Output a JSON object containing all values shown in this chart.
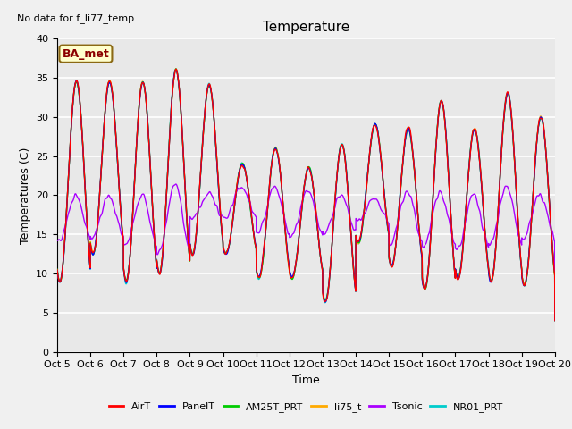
{
  "title": "Temperature",
  "xlabel": "Time",
  "ylabel": "Temperatures (C)",
  "ylim": [
    0,
    40
  ],
  "xlim": [
    0,
    15
  ],
  "annotation": "No data for f_li77_temp",
  "legend_label": "BA_met",
  "x_tick_labels": [
    "Oct 5",
    "Oct 6",
    "Oct 7",
    "Oct 8",
    "Oct 9",
    "Oct 10",
    "Oct 11",
    "Oct 12",
    "Oct 13",
    "Oct 14",
    "Oct 15",
    "Oct 16",
    "Oct 17",
    "Oct 18",
    "Oct 19",
    "Oct 20"
  ],
  "series": {
    "AirT": {
      "color": "#ff0000"
    },
    "PanelT": {
      "color": "#0000ff"
    },
    "AM25T_PRT": {
      "color": "#00cc00"
    },
    "li75_t": {
      "color": "#ffaa00"
    },
    "Tsonic": {
      "color": "#aa00ff"
    },
    "NR01_PRT": {
      "color": "#00cccc"
    }
  },
  "bg_color": "#e8e8e8",
  "grid_color": "#ffffff",
  "fig_bg": "#f0f0f0",
  "day_peaks": [
    34.5,
    34.5,
    34.5,
    36.0,
    34.0,
    24.0,
    26.0,
    23.5,
    26.5,
    29.0,
    28.5,
    32.0,
    28.5,
    33.0,
    30.0
  ],
  "day_troughs": [
    9.0,
    12.5,
    9.0,
    10.0,
    12.5,
    12.5,
    9.5,
    9.5,
    6.5,
    14.0,
    11.0,
    8.0,
    9.5,
    9.0,
    8.5
  ],
  "tsonic_peaks": [
    20.0,
    20.0,
    20.0,
    21.5,
    20.0,
    21.0,
    21.0,
    20.5,
    20.0,
    19.5,
    20.5,
    20.5,
    20.0,
    21.0,
    20.0
  ],
  "tsonic_troughs": [
    14.0,
    14.5,
    13.5,
    12.5,
    17.0,
    17.0,
    15.0,
    14.5,
    15.0,
    16.5,
    14.0,
    13.5,
    13.0,
    13.5,
    14.5
  ]
}
